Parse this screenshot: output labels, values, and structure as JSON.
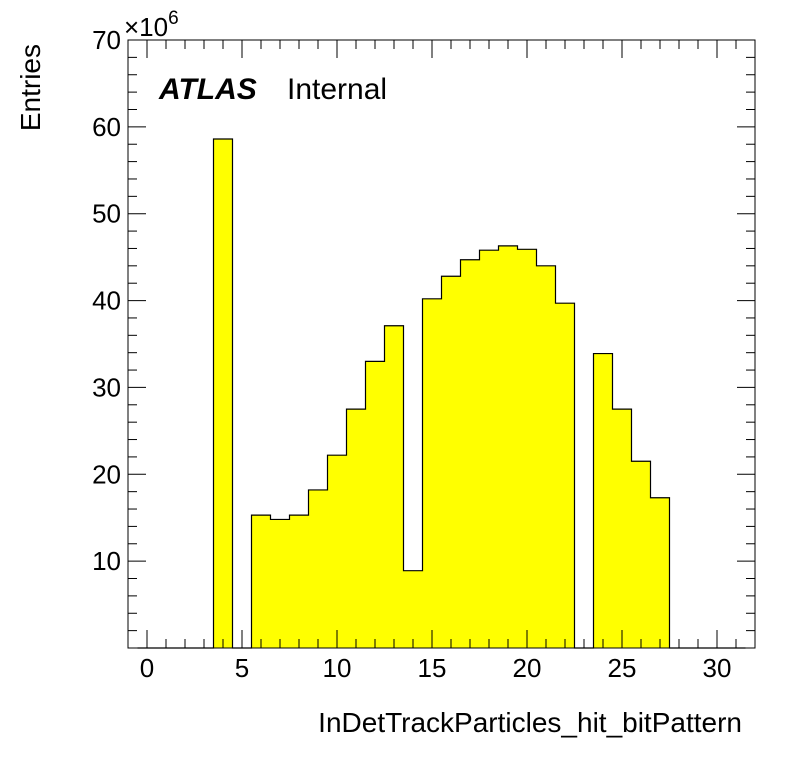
{
  "chart_data": {
    "type": "bar",
    "histogram": true,
    "xlabel": "InDetTrackParticles_hit_bitPattern",
    "ylabel": "Entries",
    "y_multiplier": "×10",
    "y_multiplier_exponent": "6",
    "atlas_label": "ATLAS",
    "atlas_status": "Internal",
    "xlim": [
      -1,
      32
    ],
    "ylim": [
      0,
      70
    ],
    "x_ticks": [
      0,
      5,
      10,
      15,
      20,
      25,
      30
    ],
    "x_tick_labels": [
      "0",
      "5",
      "10",
      "15",
      "20",
      "25",
      "30"
    ],
    "y_ticks": [
      10,
      20,
      30,
      40,
      50,
      60,
      70
    ],
    "y_tick_labels": [
      "10",
      "20",
      "30",
      "40",
      "50",
      "60",
      "70"
    ],
    "bar_color": "#ffff00",
    "bin_edges": [
      -0.5,
      0.5,
      1.5,
      2.5,
      3.5,
      4.5,
      5.5,
      6.5,
      7.5,
      8.5,
      9.5,
      10.5,
      11.5,
      12.5,
      13.5,
      14.5,
      15.5,
      16.5,
      17.5,
      18.5,
      19.5,
      20.5,
      21.5,
      22.5,
      23.5,
      24.5,
      25.5,
      26.5,
      27.5,
      28.5,
      29.5,
      30.5,
      31.5
    ],
    "values": [
      0,
      0,
      0,
      0,
      58.6,
      0,
      15.3,
      14.8,
      15.3,
      18.2,
      22.2,
      27.5,
      33.0,
      37.1,
      8.9,
      40.2,
      42.8,
      44.7,
      45.8,
      46.3,
      45.9,
      44.0,
      39.7,
      0,
      33.9,
      27.5,
      21.5,
      17.3,
      0,
      0,
      0,
      0
    ]
  }
}
